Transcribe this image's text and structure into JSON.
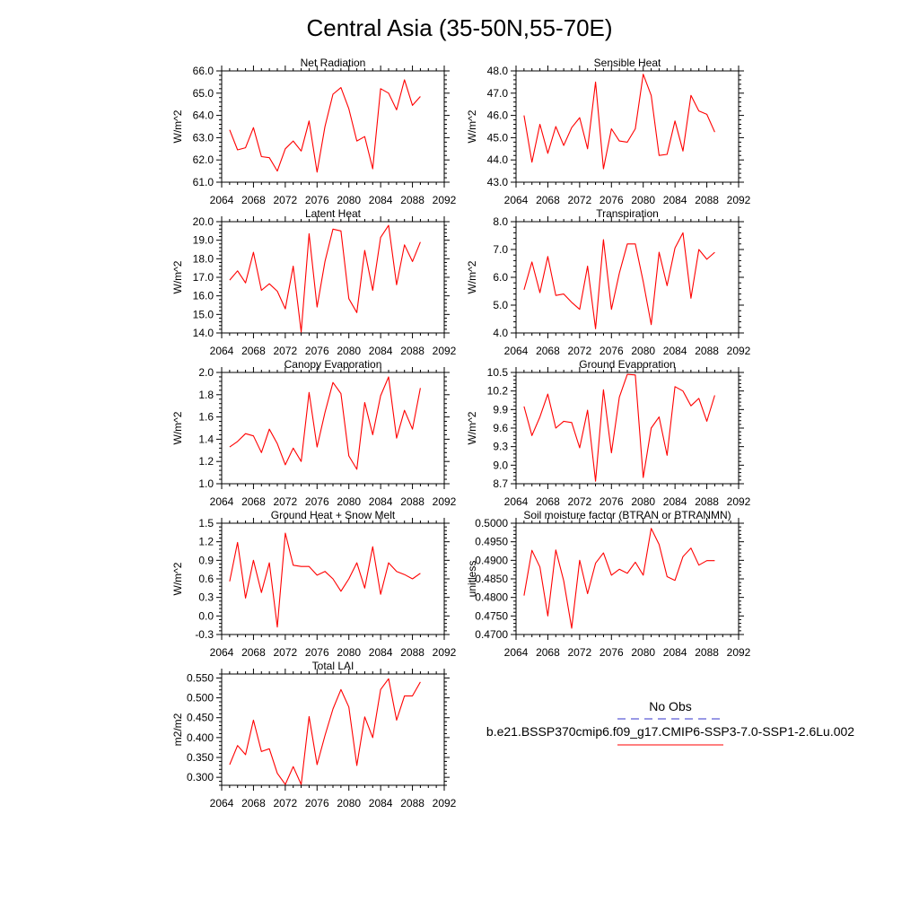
{
  "figure": {
    "title": "Central Asia (35-50N,55-70E)",
    "legend": {
      "entries": [
        {
          "label": "No Obs",
          "color": "#3333cc",
          "dash": "dashed"
        },
        {
          "label": "b.e21.BSSP370cmip6.f09_g17.CMIP6-SSP3-7.0-SSP1-2.6Lu.002",
          "color": "#ff0000",
          "dash": "solid"
        }
      ]
    }
  },
  "chart_data": [
    {
      "type": "line",
      "title": "Net Radiation",
      "xlabel": "",
      "ylabel": "W/m^2",
      "xlim": [
        2064,
        2092
      ],
      "ylim": [
        61.0,
        66.0
      ],
      "xticks": [
        "2064",
        "2068",
        "2072",
        "2076",
        "2080",
        "2084",
        "2088",
        "2092"
      ],
      "yticks": [
        "61.0",
        "62.0",
        "63.0",
        "64.0",
        "65.0",
        "66.0"
      ],
      "x": [
        2065,
        2066,
        2067,
        2068,
        2069,
        2070,
        2071,
        2072,
        2073,
        2074,
        2075,
        2076,
        2077,
        2078,
        2079,
        2080,
        2081,
        2082,
        2083,
        2084,
        2085,
        2086,
        2087,
        2088,
        2089
      ],
      "series": [
        {
          "color": "#ff0000",
          "values": [
            63.35,
            62.45,
            62.55,
            63.45,
            62.15,
            62.1,
            61.5,
            62.5,
            62.85,
            62.4,
            63.75,
            61.45,
            63.5,
            64.95,
            65.25,
            64.3,
            62.85,
            63.05,
            61.6,
            65.2,
            65.0,
            64.25,
            65.6,
            64.45,
            64.85
          ]
        }
      ]
    },
    {
      "type": "line",
      "title": "Sensible Heat",
      "xlabel": "",
      "ylabel": "W/m^2",
      "xlim": [
        2064,
        2092
      ],
      "ylim": [
        43.0,
        48.0
      ],
      "xticks": [
        "2064",
        "2068",
        "2072",
        "2076",
        "2080",
        "2084",
        "2088",
        "2092"
      ],
      "yticks": [
        "43.0",
        "44.0",
        "45.0",
        "46.0",
        "47.0",
        "48.0"
      ],
      "x": [
        2065,
        2066,
        2067,
        2068,
        2069,
        2070,
        2071,
        2072,
        2073,
        2074,
        2075,
        2076,
        2077,
        2078,
        2079,
        2080,
        2081,
        2082,
        2083,
        2084,
        2085,
        2086,
        2087,
        2088,
        2089
      ],
      "series": [
        {
          "color": "#ff0000",
          "values": [
            46.0,
            43.9,
            45.6,
            44.3,
            45.5,
            44.65,
            45.45,
            45.9,
            44.5,
            47.5,
            43.6,
            45.4,
            44.85,
            44.8,
            45.4,
            47.85,
            46.9,
            44.2,
            44.25,
            45.75,
            44.4,
            46.9,
            46.2,
            46.05,
            45.25
          ]
        }
      ]
    },
    {
      "type": "line",
      "title": "Latent Heat",
      "xlabel": "",
      "ylabel": "W/m^2",
      "xlim": [
        2064,
        2092
      ],
      "ylim": [
        14.0,
        20.0
      ],
      "xticks": [
        "2064",
        "2068",
        "2072",
        "2076",
        "2080",
        "2084",
        "2088",
        "2092"
      ],
      "yticks": [
        "14.0",
        "15.0",
        "16.0",
        "17.0",
        "18.0",
        "19.0",
        "20.0"
      ],
      "x": [
        2065,
        2066,
        2067,
        2068,
        2069,
        2070,
        2071,
        2072,
        2073,
        2074,
        2075,
        2076,
        2077,
        2078,
        2079,
        2080,
        2081,
        2082,
        2083,
        2084,
        2085,
        2086,
        2087,
        2088,
        2089
      ],
      "series": [
        {
          "color": "#ff0000",
          "values": [
            16.85,
            17.35,
            16.7,
            18.35,
            16.3,
            16.65,
            16.25,
            15.3,
            17.6,
            14.05,
            19.35,
            15.4,
            17.85,
            19.6,
            19.5,
            15.85,
            15.1,
            18.45,
            16.3,
            19.15,
            19.8,
            16.6,
            18.75,
            17.85,
            18.9
          ]
        }
      ]
    },
    {
      "type": "line",
      "title": "Transpiration",
      "xlabel": "",
      "ylabel": "W/m^2",
      "xlim": [
        2064,
        2092
      ],
      "ylim": [
        4.0,
        8.0
      ],
      "xticks": [
        "2064",
        "2068",
        "2072",
        "2076",
        "2080",
        "2084",
        "2088",
        "2092"
      ],
      "yticks": [
        "4.0",
        "5.0",
        "6.0",
        "7.0",
        "8.0"
      ],
      "x": [
        2065,
        2066,
        2067,
        2068,
        2069,
        2070,
        2071,
        2072,
        2073,
        2074,
        2075,
        2076,
        2077,
        2078,
        2079,
        2080,
        2081,
        2082,
        2083,
        2084,
        2085,
        2086,
        2087,
        2088,
        2089
      ],
      "series": [
        {
          "color": "#ff0000",
          "values": [
            5.55,
            6.55,
            5.45,
            6.75,
            5.35,
            5.4,
            5.1,
            4.85,
            6.4,
            4.15,
            7.35,
            4.85,
            6.15,
            7.2,
            7.2,
            5.85,
            4.3,
            6.9,
            5.7,
            7.05,
            7.6,
            5.25,
            7.0,
            6.65,
            6.9
          ]
        }
      ]
    },
    {
      "type": "line",
      "title": "Canopy Evaporation",
      "xlabel": "",
      "ylabel": "W/m^2",
      "xlim": [
        2064,
        2092
      ],
      "ylim": [
        1.0,
        2.0
      ],
      "xticks": [
        "2064",
        "2068",
        "2072",
        "2076",
        "2080",
        "2084",
        "2088",
        "2092"
      ],
      "yticks": [
        "1.0",
        "1.2",
        "1.4",
        "1.6",
        "1.8",
        "2.0"
      ],
      "x": [
        2065,
        2066,
        2067,
        2068,
        2069,
        2070,
        2071,
        2072,
        2073,
        2074,
        2075,
        2076,
        2077,
        2078,
        2079,
        2080,
        2081,
        2082,
        2083,
        2084,
        2085,
        2086,
        2087,
        2088,
        2089
      ],
      "series": [
        {
          "color": "#ff0000",
          "values": [
            1.33,
            1.38,
            1.45,
            1.43,
            1.28,
            1.49,
            1.36,
            1.17,
            1.32,
            1.2,
            1.82,
            1.33,
            1.64,
            1.91,
            1.81,
            1.25,
            1.13,
            1.73,
            1.44,
            1.79,
            1.96,
            1.41,
            1.66,
            1.49,
            1.86
          ]
        }
      ]
    },
    {
      "type": "line",
      "title": "Ground Evaporation",
      "xlabel": "",
      "ylabel": "W/m^2",
      "xlim": [
        2064,
        2092
      ],
      "ylim": [
        8.7,
        10.5
      ],
      "xticks": [
        "2064",
        "2068",
        "2072",
        "2076",
        "2080",
        "2084",
        "2088",
        "2092"
      ],
      "yticks": [
        "8.7",
        "9.0",
        "9.3",
        "9.6",
        "9.9",
        "10.2",
        "10.5"
      ],
      "x": [
        2065,
        2066,
        2067,
        2068,
        2069,
        2070,
        2071,
        2072,
        2073,
        2074,
        2075,
        2076,
        2077,
        2078,
        2079,
        2080,
        2081,
        2082,
        2083,
        2084,
        2085,
        2086,
        2087,
        2088,
        2089
      ],
      "series": [
        {
          "color": "#ff0000",
          "values": [
            9.95,
            9.48,
            9.78,
            10.15,
            9.6,
            9.71,
            9.69,
            9.28,
            9.89,
            8.74,
            10.22,
            9.2,
            10.1,
            10.47,
            10.46,
            8.8,
            9.6,
            9.78,
            9.16,
            10.27,
            10.2,
            9.96,
            10.08,
            9.71,
            10.13
          ]
        }
      ]
    },
    {
      "type": "line",
      "title": "Ground Heat + Snow Melt",
      "xlabel": "",
      "ylabel": "W/m^2",
      "xlim": [
        2064,
        2092
      ],
      "ylim": [
        -0.3,
        1.5
      ],
      "xticks": [
        "2064",
        "2068",
        "2072",
        "2076",
        "2080",
        "2084",
        "2088",
        "2092"
      ],
      "yticks": [
        "-0.3",
        "0.0",
        "0.3",
        "0.6",
        "0.9",
        "1.2",
        "1.5"
      ],
      "x": [
        2065,
        2066,
        2067,
        2068,
        2069,
        2070,
        2071,
        2072,
        2073,
        2074,
        2075,
        2076,
        2077,
        2078,
        2079,
        2080,
        2081,
        2082,
        2083,
        2084,
        2085,
        2086,
        2087,
        2088,
        2089
      ],
      "series": [
        {
          "color": "#ff0000",
          "values": [
            0.56,
            1.19,
            0.29,
            0.9,
            0.38,
            0.86,
            -0.18,
            1.34,
            0.82,
            0.8,
            0.8,
            0.66,
            0.72,
            0.6,
            0.4,
            0.6,
            0.86,
            0.45,
            1.12,
            0.35,
            0.86,
            0.72,
            0.67,
            0.6,
            0.69
          ]
        }
      ]
    },
    {
      "type": "line",
      "title": "Soil moisture factor (BTRAN or BTRANMN)",
      "xlabel": "",
      "ylabel": "unitless",
      "xlim": [
        2064,
        2092
      ],
      "ylim": [
        0.47,
        0.5
      ],
      "xticks": [
        "2064",
        "2068",
        "2072",
        "2076",
        "2080",
        "2084",
        "2088",
        "2092"
      ],
      "yticks": [
        "0.4700",
        "0.4750",
        "0.4800",
        "0.4850",
        "0.4900",
        "0.4950",
        "0.5000"
      ],
      "x": [
        2065,
        2066,
        2067,
        2068,
        2069,
        2070,
        2071,
        2072,
        2073,
        2074,
        2075,
        2076,
        2077,
        2078,
        2079,
        2080,
        2081,
        2082,
        2083,
        2084,
        2085,
        2086,
        2087,
        2088,
        2089
      ],
      "series": [
        {
          "color": "#ff0000",
          "values": [
            0.4805,
            0.4927,
            0.4882,
            0.475,
            0.4928,
            0.4845,
            0.4717,
            0.49,
            0.481,
            0.4892,
            0.492,
            0.486,
            0.4876,
            0.4865,
            0.4895,
            0.486,
            0.4986,
            0.4943,
            0.4856,
            0.4846,
            0.491,
            0.4933,
            0.4887,
            0.4899,
            0.4899
          ]
        }
      ]
    },
    {
      "type": "line",
      "title": "Total LAI",
      "xlabel": "",
      "ylabel": "m2/m2",
      "xlim": [
        2064,
        2092
      ],
      "ylim": [
        0.28,
        0.56
      ],
      "xticks": [
        "2064",
        "2068",
        "2072",
        "2076",
        "2080",
        "2084",
        "2088",
        "2092"
      ],
      "yticks": [
        "0.300",
        "0.350",
        "0.400",
        "0.450",
        "0.500",
        "0.550"
      ],
      "ytick_values": [
        0.3,
        0.35,
        0.4,
        0.45,
        0.5,
        0.55
      ],
      "x": [
        2065,
        2066,
        2067,
        2068,
        2069,
        2070,
        2071,
        2072,
        2073,
        2074,
        2075,
        2076,
        2077,
        2078,
        2079,
        2080,
        2081,
        2082,
        2083,
        2084,
        2085,
        2086,
        2087,
        2088,
        2089
      ],
      "series": [
        {
          "color": "#ff0000",
          "values": [
            0.332,
            0.38,
            0.357,
            0.444,
            0.365,
            0.372,
            0.31,
            0.282,
            0.327,
            0.282,
            0.453,
            0.332,
            0.405,
            0.472,
            0.521,
            0.477,
            0.33,
            0.452,
            0.4,
            0.521,
            0.548,
            0.444,
            0.505,
            0.505,
            0.54
          ]
        }
      ]
    }
  ]
}
